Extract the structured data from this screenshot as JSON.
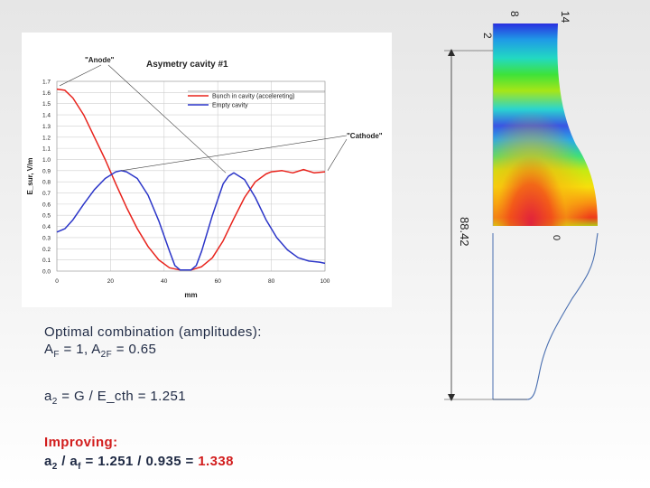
{
  "chart_data": {
    "type": "line",
    "title": "Asymetry cavity #1",
    "xlabel": "mm",
    "ylabel": "E_sur, V/m",
    "xlim": [
      0,
      100
    ],
    "ylim": [
      0,
      1.7
    ],
    "x_ticks": [
      0,
      20,
      40,
      60,
      80,
      100
    ],
    "y_ticks": [
      0.0,
      0.1,
      0.2,
      0.3,
      0.4,
      0.5,
      0.6,
      0.7,
      0.8,
      0.9,
      1.0,
      1.1,
      1.2,
      1.3,
      1.4,
      1.5,
      1.6,
      1.7
    ],
    "x_tick_labels": [
      "0",
      "20",
      "40",
      "60",
      "80",
      "100"
    ],
    "y_tick_labels": [
      "0.0",
      "0.1",
      "0.2",
      "0.3",
      "0.4",
      "0.5",
      "0.6",
      "0.7",
      "0.8",
      "0.9",
      "1.0",
      "1.1",
      "1.2",
      "1.3",
      "1.4",
      "1.5",
      "1.6",
      "1.7"
    ],
    "grid": true,
    "legend_position": "top-right",
    "annotations": [
      "\"Anode\"",
      "\"Cathode\""
    ],
    "series": [
      {
        "name": "Bunch in cavity (accelereting)",
        "color": "#e8231c",
        "x": [
          0,
          3,
          6,
          10,
          14,
          18,
          22,
          26,
          30,
          34,
          38,
          42,
          46,
          50,
          54,
          58,
          62,
          66,
          70,
          74,
          78,
          80,
          84,
          88,
          92,
          96,
          100
        ],
        "y": [
          1.63,
          1.62,
          1.55,
          1.4,
          1.2,
          1.0,
          0.78,
          0.57,
          0.38,
          0.22,
          0.1,
          0.03,
          0.01,
          0.01,
          0.04,
          0.12,
          0.27,
          0.47,
          0.66,
          0.8,
          0.87,
          0.89,
          0.9,
          0.88,
          0.91,
          0.88,
          0.89
        ]
      },
      {
        "name": "Empty cavity",
        "color": "#2b35c8",
        "x": [
          0,
          3,
          6,
          10,
          14,
          18,
          22,
          24,
          26,
          30,
          34,
          38,
          42,
          44,
          46,
          50,
          52,
          54,
          58,
          62,
          64,
          66,
          70,
          74,
          78,
          82,
          86,
          90,
          94,
          98,
          100
        ],
        "y": [
          0.35,
          0.38,
          0.46,
          0.6,
          0.73,
          0.83,
          0.89,
          0.9,
          0.89,
          0.83,
          0.68,
          0.45,
          0.18,
          0.05,
          0.01,
          0.01,
          0.05,
          0.18,
          0.5,
          0.78,
          0.85,
          0.88,
          0.82,
          0.66,
          0.46,
          0.3,
          0.19,
          0.12,
          0.09,
          0.08,
          0.07
        ]
      }
    ]
  },
  "fem": {
    "dim_top_a": "14",
    "dim_top_b": "8",
    "dim_side_small": "2",
    "dim_length": "88.42",
    "dim_zero": "0",
    "colors": [
      "#2a2fe0",
      "#1f9be6",
      "#18d6c0",
      "#38e04a",
      "#a6e617",
      "#f3e30d",
      "#f99e10",
      "#f0401a",
      "#e11f3f"
    ]
  },
  "text": {
    "line1": "Optimal combination (amplitudes):",
    "line2_a": "A",
    "line2_sub1": "F",
    "line2_b": " = 1, A",
    "line2_sub2": "2F",
    "line2_c": " = 0.65",
    "line3_a": "a",
    "line3_sub": "2",
    "line3_b": " = G / E_cth = 1.251",
    "improving": "Improving:",
    "line5_a": "a",
    "line5_sub1": "2",
    "line5_b": " / a",
    "line5_sub2": "f",
    "line5_c": "  = 1.251 / 0.935 = ",
    "line5_result": "1.338"
  }
}
